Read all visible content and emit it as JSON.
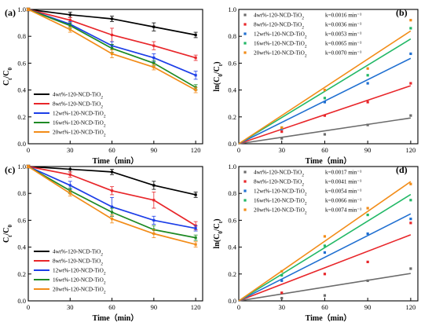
{
  "chart_data": [
    {
      "panel": "(a)",
      "type": "line",
      "xlabel": "Time（min）",
      "ylabel": "Ct/C0",
      "xlim": [
        0,
        125
      ],
      "ylim": [
        0,
        1.0
      ],
      "xticks": [
        "0",
        "30",
        "60",
        "90",
        "120"
      ],
      "yticks": [
        "0.0",
        "0.2",
        "0.4",
        "0.6",
        "0.8",
        "1.0"
      ],
      "legend_position": "bottom-left",
      "x": [
        0,
        30,
        60,
        90,
        120
      ],
      "series": [
        {
          "name": "4wt%-120-NCD-TiO2",
          "color": "#000000",
          "values": [
            1.0,
            0.96,
            0.93,
            0.87,
            0.81
          ],
          "errors": [
            0.01,
            0.02,
            0.02,
            0.03,
            0.02
          ]
        },
        {
          "name": "8wt%-120-NCD-TiO2",
          "color": "#e8262a",
          "values": [
            1.0,
            0.92,
            0.81,
            0.73,
            0.64
          ],
          "errors": [
            0.01,
            0.02,
            0.05,
            0.03,
            0.02
          ]
        },
        {
          "name": "12wt%-120-NCD-TiO2",
          "color": "#1c3ee8",
          "values": [
            1.0,
            0.89,
            0.73,
            0.64,
            0.51
          ],
          "errors": [
            0.01,
            0.02,
            0.03,
            0.03,
            0.03
          ]
        },
        {
          "name": "16wt%-120-NCD-TiO2",
          "color": "#1e8a24",
          "values": [
            1.0,
            0.88,
            0.71,
            0.6,
            0.42
          ],
          "errors": [
            0.01,
            0.02,
            0.03,
            0.02,
            0.02
          ]
        },
        {
          "name": "20wt%-120-NCD-TiO2",
          "color": "#f28c18",
          "values": [
            1.0,
            0.85,
            0.67,
            0.57,
            0.4
          ],
          "errors": [
            0.01,
            0.02,
            0.03,
            0.02,
            0.02
          ]
        }
      ]
    },
    {
      "panel": "(b)",
      "type": "scatter",
      "xlabel": "Time（min）",
      "ylabel": "ln(C0/Ct)",
      "xlim": [
        0,
        125
      ],
      "ylim": [
        0,
        1.0
      ],
      "xticks": [
        "0",
        "30",
        "60",
        "90",
        "120"
      ],
      "yticks": [
        "0.0",
        "0.2",
        "0.4",
        "0.6",
        "0.8",
        "1.0"
      ],
      "legend_position": "top-left",
      "x": [
        30,
        60,
        90,
        120
      ],
      "series": [
        {
          "name": "4wt%-120-NCD-TiO2",
          "k": "k=0.0016 min⁻¹",
          "slope": 0.0016,
          "color": "#6b6b6b",
          "values": [
            0.04,
            0.07,
            0.14,
            0.21
          ]
        },
        {
          "name": "8wt%-120-NCD-TiO2",
          "k": "k=0.0036 min⁻¹",
          "slope": 0.0036,
          "color": "#e8262a",
          "values": [
            0.09,
            0.21,
            0.31,
            0.45
          ]
        },
        {
          "name": "12wt%-120-NCD-TiO2",
          "k": "k=0.0053 min⁻¹",
          "slope": 0.0053,
          "color": "#1f6fd1",
          "values": [
            0.11,
            0.31,
            0.45,
            0.67
          ]
        },
        {
          "name": "16wt%-120-NCD-TiO2",
          "k": "k=0.0065 min⁻¹",
          "slope": 0.0065,
          "color": "#22b866",
          "values": [
            0.12,
            0.34,
            0.51,
            0.86
          ]
        },
        {
          "name": "20wt%-120-NCD-TiO2",
          "k": "k=0.0070 min⁻¹",
          "slope": 0.007,
          "color": "#f28c18",
          "values": [
            0.12,
            0.4,
            0.56,
            0.92
          ]
        }
      ]
    },
    {
      "panel": "(c)",
      "type": "line",
      "xlabel": "Time（min）",
      "ylabel": "Ct/C0",
      "xlim": [
        0,
        125
      ],
      "ylim": [
        0,
        1.0
      ],
      "xticks": [
        "0",
        "30",
        "60",
        "90",
        "120"
      ],
      "yticks": [
        "0.0",
        "0.2",
        "0.4",
        "0.6",
        "0.8",
        "1.0"
      ],
      "legend_position": "bottom-left",
      "x": [
        0,
        30,
        60,
        90,
        120
      ],
      "series": [
        {
          "name": "4wt%-120-NCD-TiO2",
          "color": "#000000",
          "values": [
            1.0,
            0.98,
            0.96,
            0.86,
            0.79
          ],
          "errors": [
            0.01,
            0.02,
            0.02,
            0.03,
            0.02
          ]
        },
        {
          "name": "8wt%-120-NCD-TiO2",
          "color": "#e8262a",
          "values": [
            1.0,
            0.94,
            0.82,
            0.75,
            0.56
          ],
          "errors": [
            0.01,
            0.02,
            0.03,
            0.06,
            0.03
          ]
        },
        {
          "name": "12wt%-120-NCD-TiO2",
          "color": "#1c3ee8",
          "values": [
            1.0,
            0.86,
            0.7,
            0.6,
            0.54
          ],
          "errors": [
            0.01,
            0.03,
            0.07,
            0.03,
            0.02
          ]
        },
        {
          "name": "16wt%-120-NCD-TiO2",
          "color": "#1e8a24",
          "values": [
            1.0,
            0.82,
            0.66,
            0.53,
            0.47
          ],
          "errors": [
            0.01,
            0.02,
            0.03,
            0.03,
            0.02
          ]
        },
        {
          "name": "20wt%-120-NCD-TiO2",
          "color": "#f28c18",
          "values": [
            1.0,
            0.8,
            0.61,
            0.5,
            0.42
          ],
          "errors": [
            0.01,
            0.02,
            0.03,
            0.03,
            0.02
          ]
        }
      ]
    },
    {
      "panel": "(d)",
      "type": "scatter",
      "xlabel": "Time（min）",
      "ylabel": "ln(C0/Ct)",
      "xlim": [
        0,
        125
      ],
      "ylim": [
        0,
        1.0
      ],
      "xticks": [
        "0",
        "30",
        "60",
        "90",
        "120"
      ],
      "yticks": [
        "0.0",
        "0.2",
        "0.4",
        "0.6",
        "0.8",
        "1.0"
      ],
      "legend_position": "top-left",
      "x": [
        30,
        60,
        90,
        120
      ],
      "series": [
        {
          "name": "4wt%-120-NCD-TiO2",
          "k": "k=0.0017 min⁻¹",
          "slope": 0.0017,
          "color": "#6b6b6b",
          "values": [
            0.02,
            0.04,
            0.15,
            0.24
          ]
        },
        {
          "name": "8wt%-120-NCD-TiO2",
          "k": "k=0.0041 min⁻¹",
          "slope": 0.0041,
          "color": "#e8262a",
          "values": [
            0.06,
            0.2,
            0.29,
            0.58
          ]
        },
        {
          "name": "12wt%-120-NCD-TiO2",
          "k": "k=0.0054 min⁻¹",
          "slope": 0.0054,
          "color": "#1f6fd1",
          "values": [
            0.15,
            0.36,
            0.5,
            0.61
          ]
        },
        {
          "name": "16wt%-120-NCD-TiO2",
          "k": "k=0.0066 min⁻¹",
          "slope": 0.0066,
          "color": "#22b866",
          "values": [
            0.19,
            0.41,
            0.64,
            0.75
          ]
        },
        {
          "name": "20wt%-120-NCD-TiO2",
          "k": "k=0.0074 min⁻¹",
          "slope": 0.0074,
          "color": "#f28c18",
          "values": [
            0.22,
            0.48,
            0.69,
            0.87
          ]
        }
      ]
    }
  ]
}
